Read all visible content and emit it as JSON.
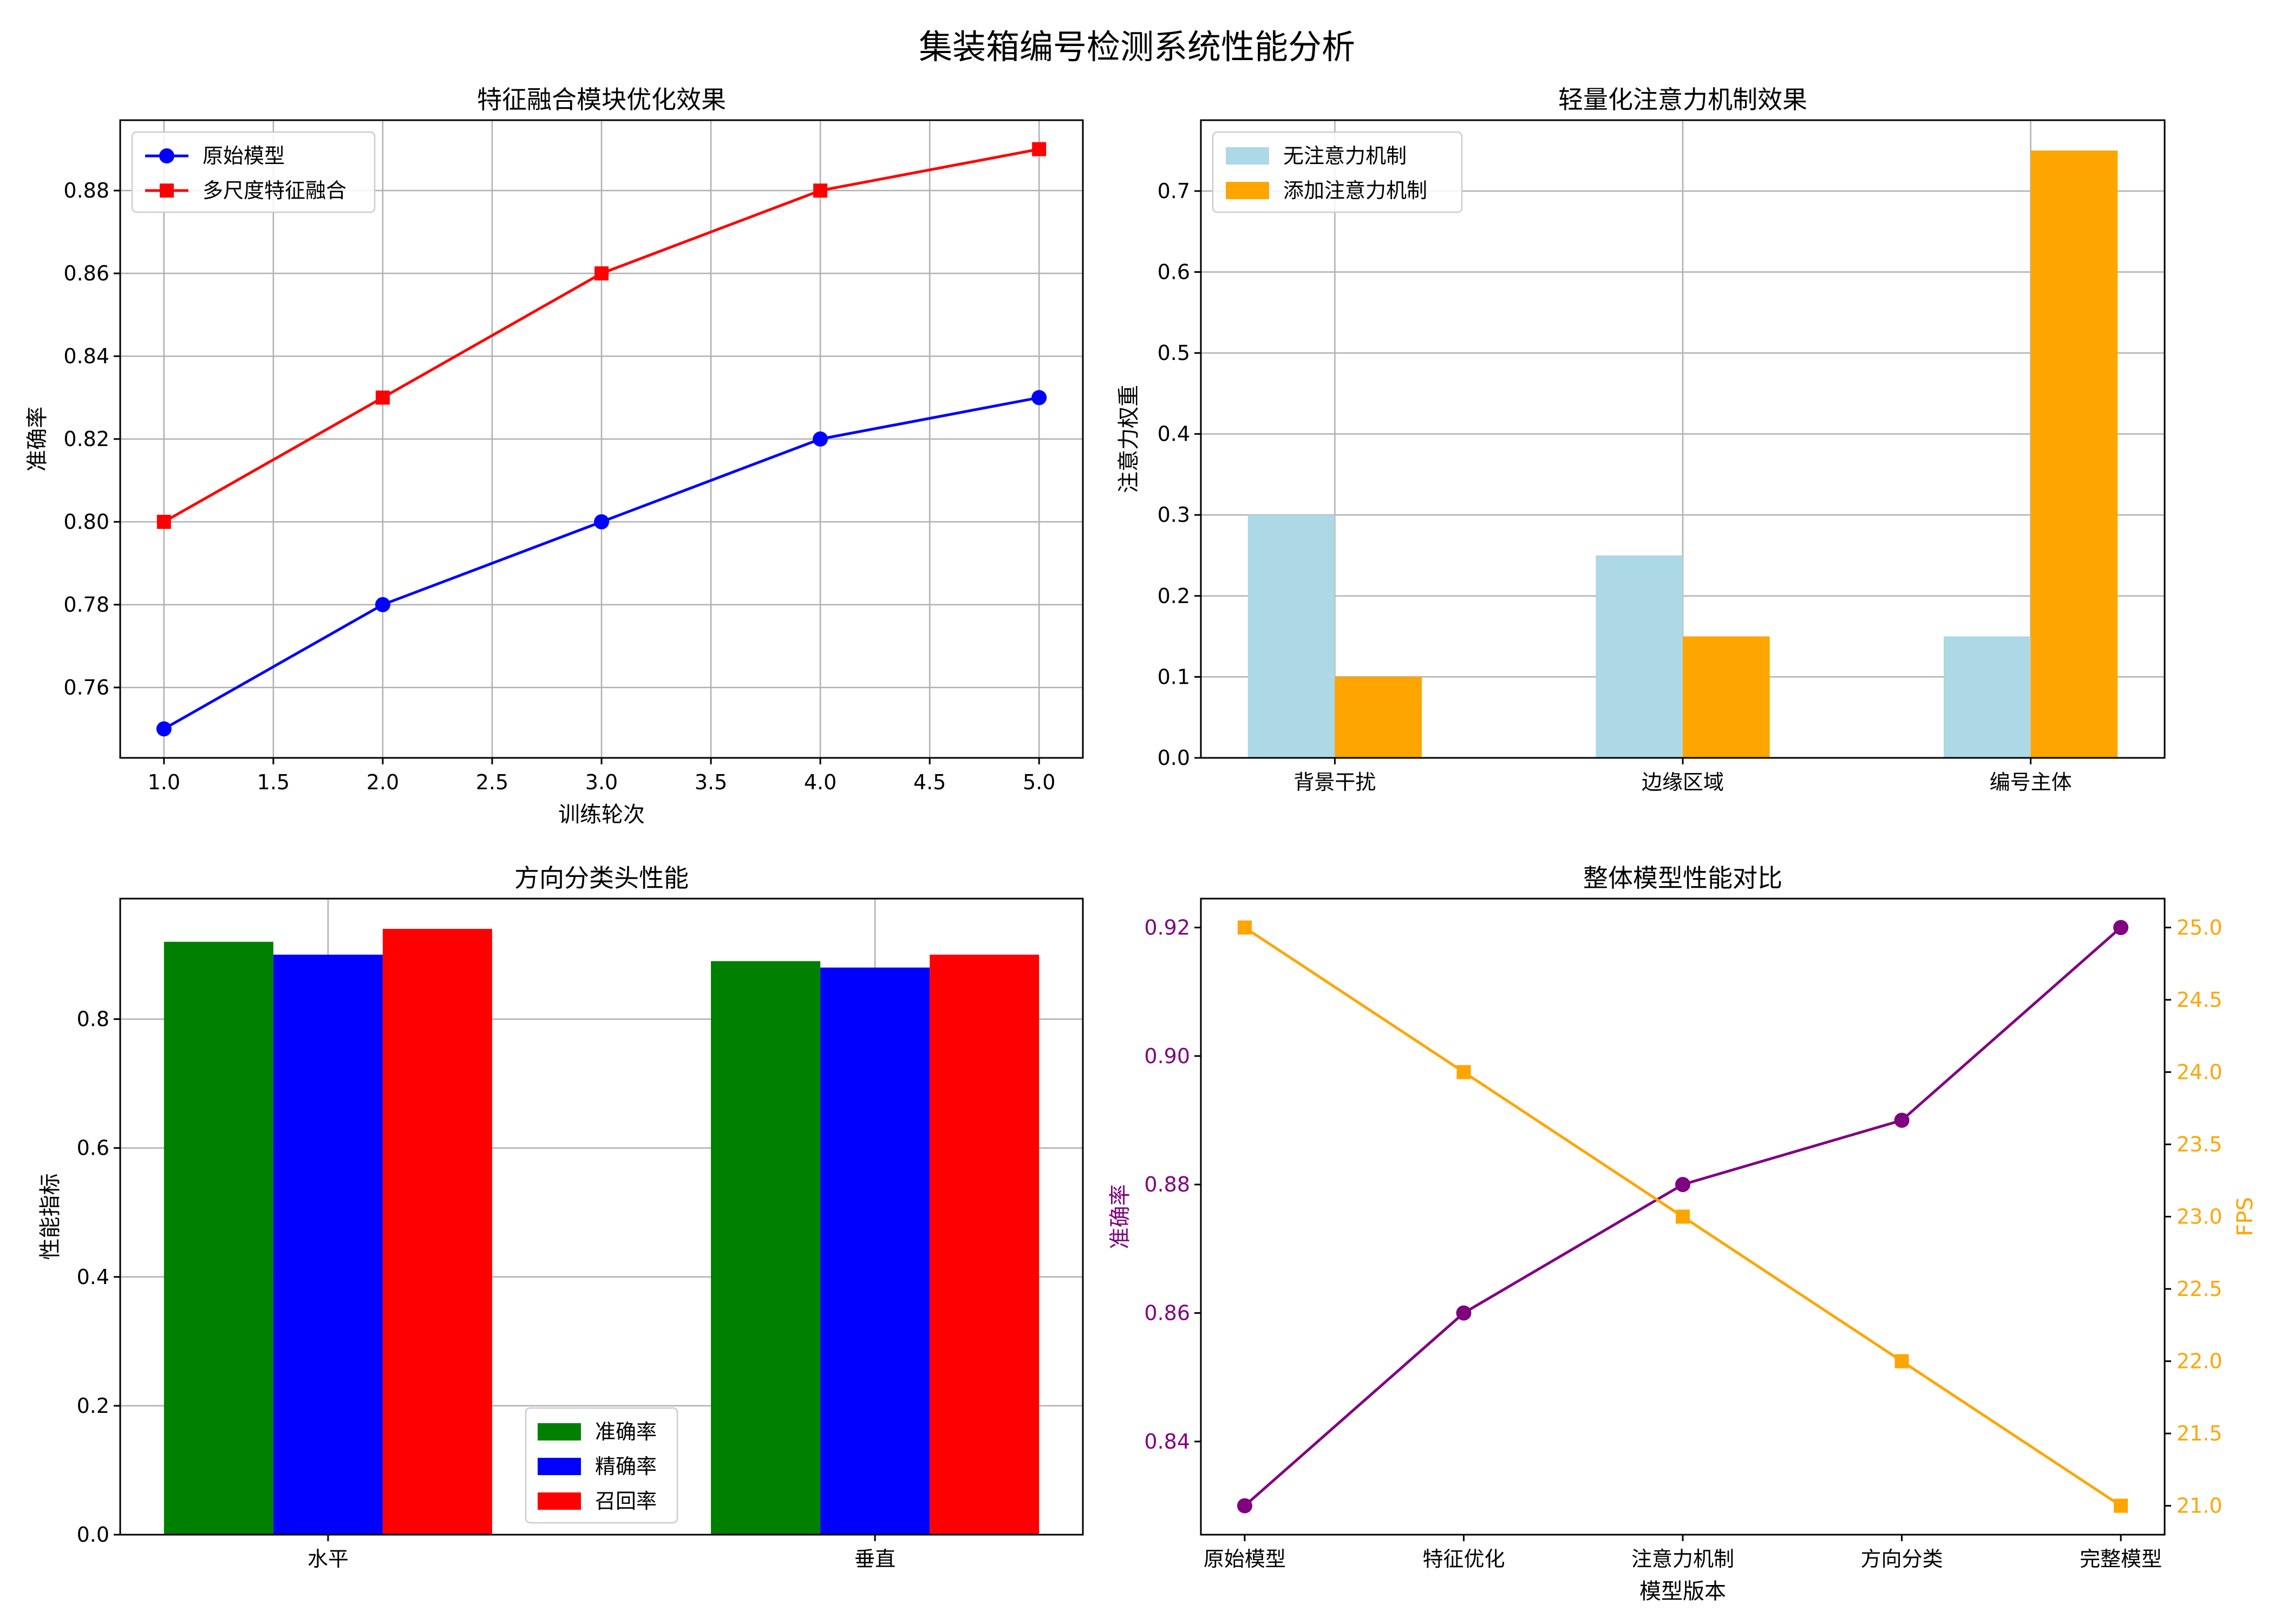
{
  "figure": {
    "suptitle": "集装箱编号检测系统性能分析"
  },
  "chart_data": [
    {
      "type": "line",
      "title": "特征融合模块优化效果",
      "xlabel": "训练轮次",
      "ylabel": "准确率",
      "x": [
        1,
        2,
        3,
        4,
        5
      ],
      "xticks": [
        "1.0",
        "1.5",
        "2.0",
        "2.5",
        "3.0",
        "3.5",
        "4.0",
        "4.5",
        "5.0"
      ],
      "yticks": [
        "0.76",
        "0.78",
        "0.80",
        "0.82",
        "0.84",
        "0.86",
        "0.88"
      ],
      "xlim": [
        0.8,
        5.2
      ],
      "ylim": [
        0.743,
        0.897
      ],
      "grid": true,
      "legend": "upper-left",
      "series": [
        {
          "name": "原始模型",
          "values": [
            0.75,
            0.78,
            0.8,
            0.82,
            0.83
          ],
          "color": "#0000ff",
          "marker": "circle"
        },
        {
          "name": "多尺度特征融合",
          "values": [
            0.8,
            0.83,
            0.86,
            0.88,
            0.89
          ],
          "color": "#ff0000",
          "marker": "square"
        }
      ]
    },
    {
      "type": "bar",
      "title": "轻量化注意力机制效果",
      "xlabel": "",
      "ylabel": "注意力权重",
      "categories": [
        "背景干扰",
        "边缘区域",
        "编号主体"
      ],
      "yticks": [
        "0.0",
        "0.1",
        "0.2",
        "0.3",
        "0.4",
        "0.5",
        "0.6",
        "0.7"
      ],
      "ylim": [
        0,
        0.7875
      ],
      "grid": true,
      "legend": "upper-left",
      "series": [
        {
          "name": "无注意力机制",
          "values": [
            0.3,
            0.25,
            0.15
          ],
          "color": "#add8e6"
        },
        {
          "name": "添加注意力机制",
          "values": [
            0.1,
            0.15,
            0.75
          ],
          "color": "#ffa500"
        }
      ]
    },
    {
      "type": "bar",
      "title": "方向分类头性能",
      "xlabel": "",
      "ylabel": "性能指标",
      "categories": [
        "水平",
        "垂直"
      ],
      "yticks": [
        "0.0",
        "0.2",
        "0.4",
        "0.6",
        "0.8"
      ],
      "ylim": [
        0,
        0.987
      ],
      "grid": true,
      "legend": "lower-center",
      "series": [
        {
          "name": "准确率",
          "values": [
            0.92,
            0.89
          ],
          "color": "#008000"
        },
        {
          "name": "精确率",
          "values": [
            0.9,
            0.88
          ],
          "color": "#0000ff"
        },
        {
          "name": "召回率",
          "values": [
            0.94,
            0.9
          ],
          "color": "#ff0000"
        }
      ]
    },
    {
      "type": "line",
      "title": "整体模型性能对比",
      "xlabel": "模型版本",
      "ylabel": "准确率",
      "ylabel_right": "FPS",
      "categories": [
        "原始模型",
        "特征优化",
        "注意力机制",
        "方向分类",
        "完整模型"
      ],
      "yticks": [
        "0.84",
        "0.86",
        "0.88",
        "0.90",
        "0.92"
      ],
      "yticks_right": [
        "21.0",
        "21.5",
        "22.0",
        "22.5",
        "23.0",
        "23.5",
        "24.0",
        "24.5",
        "25.0"
      ],
      "ylim": [
        0.8255,
        0.9245
      ],
      "ylim_right": [
        20.8,
        25.2
      ],
      "grid": false,
      "series": [
        {
          "name": "准确率",
          "axis": "left",
          "values": [
            0.83,
            0.86,
            0.88,
            0.89,
            0.92
          ],
          "color": "#800080",
          "marker": "circle"
        },
        {
          "name": "FPS",
          "axis": "right",
          "values": [
            25,
            24,
            23,
            22,
            21
          ],
          "color": "#ffa500",
          "marker": "square"
        }
      ]
    }
  ]
}
